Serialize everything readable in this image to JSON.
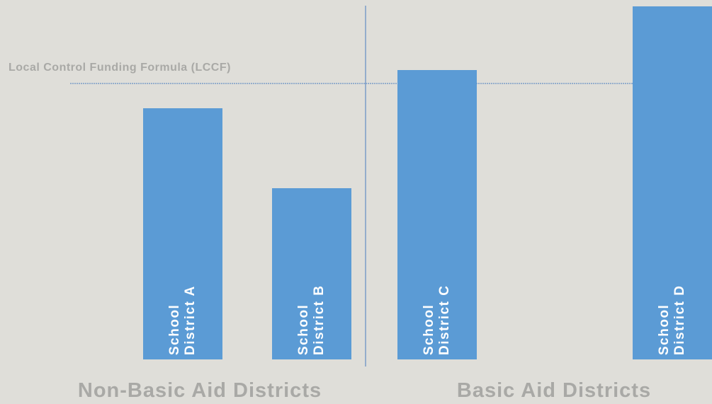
{
  "chart_data": {
    "type": "bar",
    "categories": [
      "School District A",
      "School District B",
      "School District C",
      "School District D"
    ],
    "values": [
      91,
      62,
      105,
      128
    ],
    "color": "#5b9bd5",
    "ylim": [
      0,
      130
    ],
    "groups": [
      "Non-Basic Aid Districts",
      "Basic Aid Districts"
    ],
    "reference_line": {
      "label": "Local Control Funding Formula (LCCF)",
      "value": 100
    }
  }
}
